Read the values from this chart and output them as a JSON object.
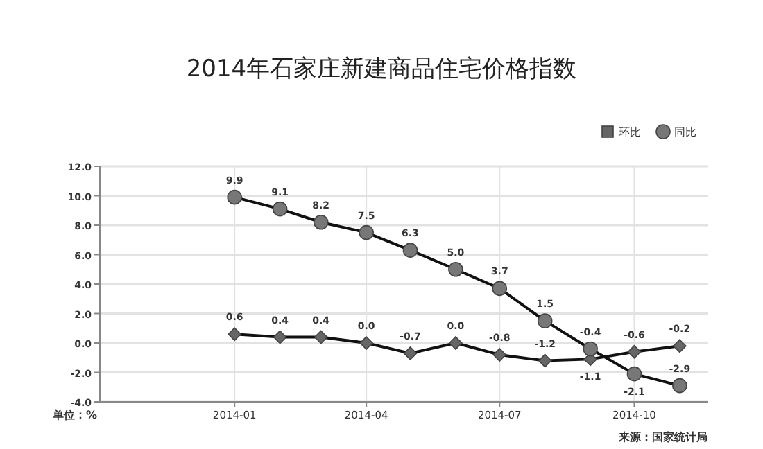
{
  "chart_data": {
    "type": "line",
    "title": "2014年石家庄新建商品住宅价格指数",
    "x": [
      "2014-01",
      "2014-02",
      "2014-03",
      "2014-04",
      "2014-05",
      "2014-06",
      "2014-07",
      "2014-08",
      "2014-09",
      "2014-10",
      "2014-11"
    ],
    "series": [
      {
        "name": "环比",
        "color": "#666666",
        "marker": "diamond",
        "values": [
          0.6,
          0.4,
          0.4,
          0.0,
          -0.7,
          0.0,
          -0.8,
          -1.2,
          -1.1,
          -0.6,
          -0.2
        ],
        "value_labels": [
          "0.6",
          "0.4",
          "0.4",
          "0.0",
          "-0.7",
          "0.0",
          "-0.8",
          "-1.2",
          "-1.1",
          "-0.6",
          "-0.2"
        ]
      },
      {
        "name": "同比",
        "color": "#777777",
        "marker": "circle",
        "values": [
          9.9,
          9.1,
          8.2,
          7.5,
          6.3,
          5.0,
          3.7,
          1.5,
          -0.4,
          -2.1,
          -2.9
        ],
        "value_labels": [
          "9.9",
          "9.1",
          "8.2",
          "7.5",
          "6.3",
          "5.0",
          "3.7",
          "1.5",
          "-0.4",
          "-2.1",
          "-2.9"
        ]
      }
    ],
    "xlim": [
      "2013-10",
      "2014-11-20"
    ],
    "xticks": [
      "2014-01",
      "2014-04",
      "2014-07",
      "2014-10"
    ],
    "ylim": [
      -4,
      12
    ],
    "yticks": [
      {
        "value": -4,
        "label": "-4.0"
      },
      {
        "value": -2,
        "label": "-2.0"
      },
      {
        "value": 0,
        "label": "0.0"
      },
      {
        "value": 2,
        "label": "2.0"
      },
      {
        "value": 4,
        "label": "4.0"
      },
      {
        "value": 6,
        "label": "6.0"
      },
      {
        "value": 8,
        "label": "8.0"
      },
      {
        "value": 10,
        "label": "10.0"
      },
      {
        "value": 12,
        "label": "12.0"
      }
    ],
    "grid": true,
    "legend": "top right",
    "annotations": [
      "单位：%",
      "来源：国家统计局"
    ]
  }
}
